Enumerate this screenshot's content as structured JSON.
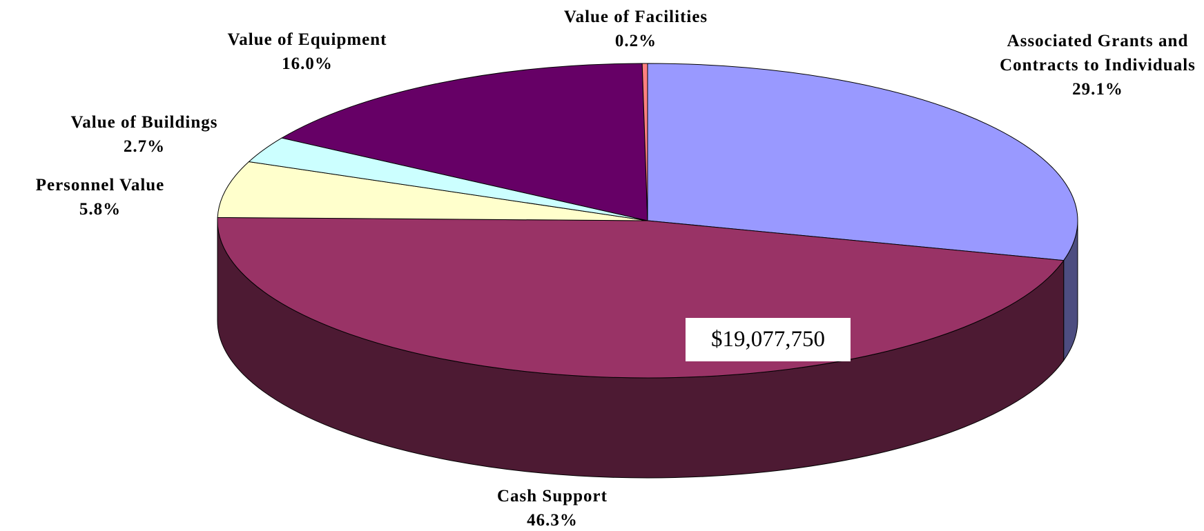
{
  "chart_data": {
    "type": "pie",
    "categories": [
      "Associated Grants and Contracts to Individuals",
      "Cash Support",
      "Personnel Value",
      "Value of Buildings",
      "Value of Equipment",
      "Value of Facilities"
    ],
    "values": [
      29.1,
      46.3,
      5.8,
      2.7,
      16.0,
      0.2
    ],
    "value_labels": [
      "29.1%",
      "46.3%",
      "5.8%",
      "2.7%",
      "16.0%",
      "0.2%"
    ],
    "colors": [
      "#9999ff",
      "#993366",
      "#ffffcc",
      "#ccffff",
      "#660066",
      "#ff8080"
    ],
    "annotation": "$19,077,750"
  }
}
